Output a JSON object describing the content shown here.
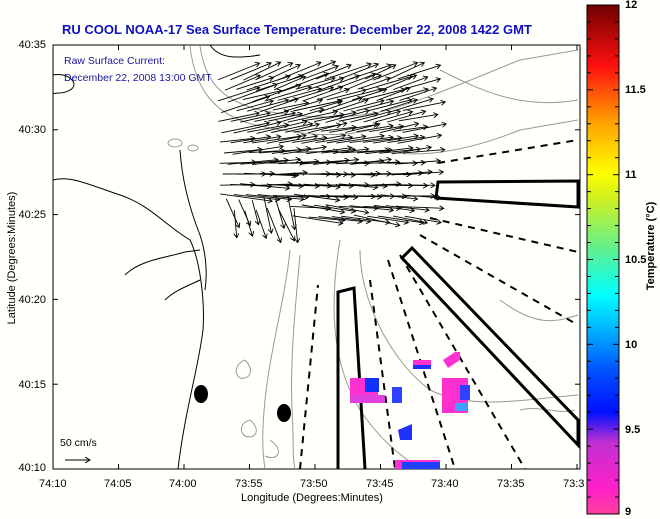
{
  "title": "RU COOL  NOAA-17  Sea Surface Temperature:  December 22, 2008 1422 GMT",
  "overlay": {
    "line1": "Raw Surface Current:",
    "line2": "December 22, 2008 13:00 GMT"
  },
  "axes": {
    "y_label": "Latitude (Degrees:Minutes)",
    "x_label": "Longitude (Degrees:Minutes)",
    "y_ticks": [
      "40:35",
      "40:30",
      "40:25",
      "40:20",
      "40:15",
      "40:10"
    ],
    "x_ticks": [
      "74:10",
      "74:05",
      "74:00",
      "73:55",
      "73:50",
      "73:45",
      "73:40",
      "73:35",
      "73:3"
    ]
  },
  "scale_arrow": {
    "label": "50 cm/s"
  },
  "colorbar": {
    "label": "Temperature (°C)",
    "ticks": [
      "12",
      "11.5",
      "11",
      "10.5",
      "10",
      "9.5",
      "9"
    ],
    "range": [
      9,
      12
    ],
    "colors": [
      "#ff20c0",
      "#8030d0",
      "#0010ff",
      "#0090ff",
      "#00ffff",
      "#60ff80",
      "#ffff00",
      "#ffa000",
      "#ff2000",
      "#700000"
    ]
  },
  "map_features": {
    "sst_patch_color_low": "#ff20d0",
    "sst_patch_color_high": "#1030ff",
    "coastline_color": "#000000",
    "bathymetry_color": "#909090"
  }
}
